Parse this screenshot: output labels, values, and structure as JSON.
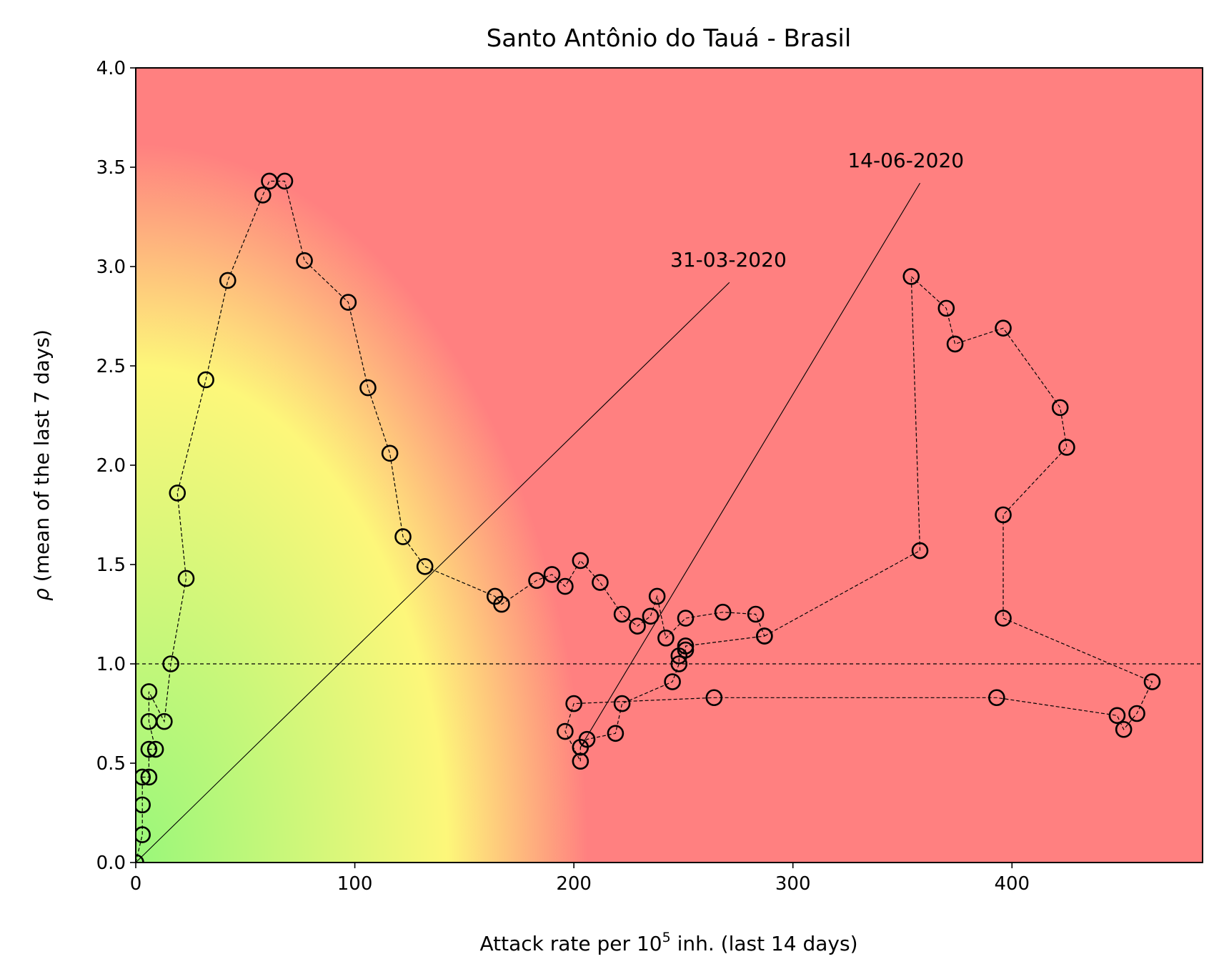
{
  "chart_data": {
    "type": "scatter",
    "title": "Santo Antônio do Tauá - Brasil",
    "xlabel_prefix": "Attack rate per 10",
    "xlabel_sup": "5",
    "xlabel_suffix": " inh. (last 14 days)",
    "ylabel_symbol": "ρ",
    "ylabel_text": " (mean of the last 7 days)",
    "xlim": [
      0,
      487
    ],
    "ylim": [
      0,
      4.0
    ],
    "xticks": [
      0,
      100,
      200,
      300,
      400
    ],
    "yticks": [
      0.0,
      0.5,
      1.0,
      1.5,
      2.0,
      2.5,
      3.0,
      3.5,
      4.0
    ],
    "xtick_labels": [
      "0",
      "100",
      "200",
      "300",
      "400"
    ],
    "ytick_labels": [
      "0.0",
      "0.5",
      "1.0",
      "1.5",
      "2.0",
      "2.5",
      "3.0",
      "3.5",
      "4.0"
    ],
    "reference_line_y": 1.0,
    "background": {
      "colors": [
        "#99f77a",
        "#fdf77a",
        "#ff8080"
      ],
      "description_values": "risk gradient green-yellow-red"
    },
    "points": [
      [
        0,
        0.0
      ],
      [
        3,
        0.14
      ],
      [
        3,
        0.29
      ],
      [
        3,
        0.43
      ],
      [
        6,
        0.43
      ],
      [
        6,
        0.57
      ],
      [
        9,
        0.57
      ],
      [
        6,
        0.71
      ],
      [
        6,
        0.86
      ],
      [
        13,
        0.71
      ],
      [
        16,
        1.0
      ],
      [
        23,
        1.43
      ],
      [
        19,
        1.86
      ],
      [
        32,
        2.43
      ],
      [
        42,
        2.93
      ],
      [
        58,
        3.36
      ],
      [
        61,
        3.43
      ],
      [
        68,
        3.43
      ],
      [
        77,
        3.03
      ],
      [
        97,
        2.82
      ],
      [
        106,
        2.39
      ],
      [
        116,
        2.06
      ],
      [
        122,
        1.64
      ],
      [
        132,
        1.49
      ],
      [
        164,
        1.34
      ],
      [
        167,
        1.3
      ],
      [
        183,
        1.42
      ],
      [
        190,
        1.45
      ],
      [
        196,
        1.39
      ],
      [
        203,
        1.52
      ],
      [
        212,
        1.41
      ],
      [
        222,
        1.25
      ],
      [
        229,
        1.19
      ],
      [
        235,
        1.24
      ],
      [
        238,
        1.34
      ],
      [
        242,
        1.13
      ],
      [
        251,
        1.23
      ],
      [
        268,
        1.26
      ],
      [
        283,
        1.25
      ],
      [
        287,
        1.14
      ],
      [
        251,
        1.09
      ],
      [
        251,
        1.07
      ],
      [
        248,
        1.04
      ],
      [
        248,
        1.0
      ],
      [
        245,
        0.91
      ],
      [
        222,
        0.8
      ],
      [
        219,
        0.65
      ],
      [
        206,
        0.62
      ],
      [
        203,
        0.58
      ],
      [
        203,
        0.51
      ],
      [
        196,
        0.66
      ],
      [
        200,
        0.8
      ],
      [
        264,
        0.83
      ],
      [
        393,
        0.83
      ],
      [
        448,
        0.74
      ],
      [
        451,
        0.67
      ],
      [
        457,
        0.75
      ],
      [
        464,
        0.91
      ],
      [
        396,
        1.23
      ],
      [
        396,
        1.75
      ],
      [
        425,
        2.09
      ],
      [
        422,
        2.29
      ],
      [
        396,
        2.69
      ],
      [
        374,
        2.61
      ],
      [
        370,
        2.79
      ],
      [
        354,
        2.95
      ],
      [
        358,
        1.57
      ],
      [
        287,
        1.14
      ]
    ],
    "annotations": [
      {
        "text": "31-03-2020",
        "point": [
          0,
          0.0
        ],
        "text_at": [
          244,
          3.0
        ],
        "line_to": [
          271,
          2.92
        ]
      },
      {
        "text": "14-06-2020",
        "point": [
          203,
          0.58
        ],
        "text_at": [
          325,
          3.5
        ],
        "line_to": [
          358,
          3.42
        ]
      }
    ]
  }
}
